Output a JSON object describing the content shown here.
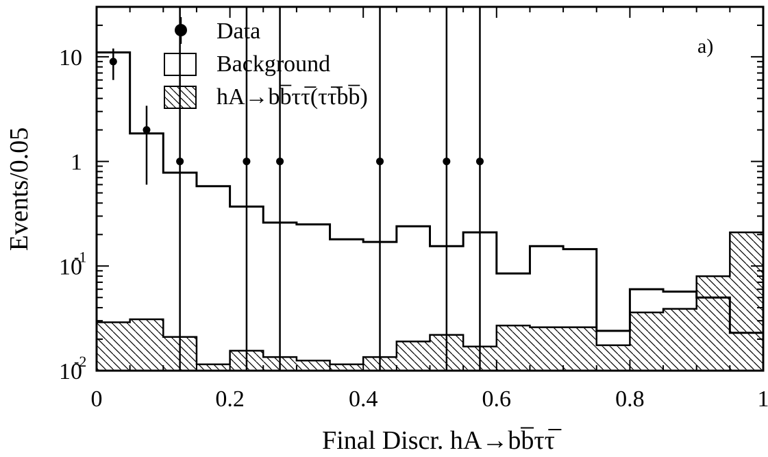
{
  "chart_data": {
    "type": "histogram",
    "title": "",
    "panel_label": "a)",
    "xlabel": "Final Discr. hA→bb̅ττ̅",
    "ylabel": "Events/0.05",
    "xlim": [
      0,
      1
    ],
    "ylim": [
      0.01,
      30
    ],
    "yscale": "log",
    "grid": false,
    "legend_position": "top-left",
    "x_ticks": [
      {
        "value": 0,
        "label": "0"
      },
      {
        "value": 0.2,
        "label": "0.2"
      },
      {
        "value": 0.4,
        "label": "0.4"
      },
      {
        "value": 0.6,
        "label": "0.6"
      },
      {
        "value": 0.8,
        "label": "0.8"
      },
      {
        "value": 1,
        "label": "1"
      }
    ],
    "y_ticks": [
      {
        "value": 0.01,
        "base": "10",
        "exponent": "-2"
      },
      {
        "value": 0.1,
        "base": "10",
        "exponent": "-1"
      },
      {
        "value": 1,
        "base": "1",
        "exponent": ""
      },
      {
        "value": 10,
        "base": "10",
        "exponent": ""
      }
    ],
    "bin_edges": [
      0,
      0.05,
      0.1,
      0.15,
      0.2,
      0.25,
      0.3,
      0.35,
      0.4,
      0.45,
      0.5,
      0.55,
      0.6,
      0.65,
      0.7,
      0.75,
      0.8,
      0.85,
      0.9,
      0.95,
      1.0
    ],
    "series": [
      {
        "name": "Data",
        "kind": "points",
        "x": [
          0.025,
          0.075,
          0.125,
          0.225,
          0.275,
          0.425,
          0.525,
          0.575
        ],
        "y": [
          9,
          2,
          1,
          1,
          1,
          1,
          1,
          1
        ],
        "err_low": [
          6,
          0.6,
          0.01,
          0.01,
          0.01,
          0.01,
          0.01,
          0.01
        ],
        "err_high": [
          12,
          3.4,
          35,
          35,
          35,
          35,
          35,
          35
        ]
      },
      {
        "name": "Background",
        "kind": "step",
        "values": [
          11,
          1.85,
          0.78,
          0.58,
          0.37,
          0.26,
          0.25,
          0.18,
          0.17,
          0.24,
          0.155,
          0.21,
          0.085,
          0.155,
          0.145,
          0.024,
          0.06,
          0.057,
          0.05,
          0.023
        ]
      },
      {
        "name": "hA→bb̅ττ̅(ττ̅bb̅)",
        "kind": "hatched",
        "values": [
          0.029,
          0.031,
          0.021,
          0.0115,
          0.0155,
          0.0135,
          0.0125,
          0.0115,
          0.0135,
          0.019,
          0.022,
          0.017,
          0.027,
          0.026,
          0.026,
          0.0175,
          0.036,
          0.039,
          0.08,
          0.21
        ]
      }
    ]
  },
  "colors": {
    "ink": "#000000",
    "background": "#ffffff"
  }
}
